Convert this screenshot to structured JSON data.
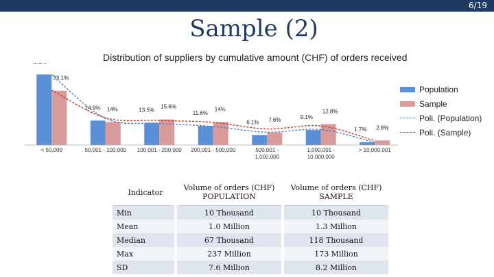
{
  "slide": {
    "title": "Sample (2)",
    "page": "6/19"
  },
  "chart_data": {
    "type": "bar",
    "title": "Distribution of suppliers by cumulative amount (CHF) of orders received",
    "categories": [
      "< 50,000",
      "50,001 - 100,000",
      "100,001 - 200,000",
      "200,001 - 500,000",
      "500,001 -|1,000,000",
      "1,000,001 -|10,000,000",
      "> 10,000,001"
    ],
    "series": [
      {
        "name": "Population",
        "values": [
          43.1,
          14.9,
          13.5,
          11.6,
          6.1,
          9.1,
          1.7
        ],
        "labels": [
          "43.1%",
          "14.9%",
          "13.5%",
          "11.6%",
          "6.1%",
          "9.1%",
          "1.7%"
        ],
        "color": "#5b8fd6"
      },
      {
        "name": "Sample",
        "values": [
          33.1,
          14,
          15.6,
          14,
          7.6,
          12.8,
          2.8
        ],
        "labels": [
          "33.1%",
          "14%",
          "15.6%",
          "14%",
          "7.6%",
          "12.8%",
          "2.8%"
        ],
        "color": "#d99a9a"
      }
    ],
    "trendlines": [
      {
        "name": "Poli. (Population)",
        "color": "#4f81bd",
        "values": [
          43.0,
          16.2,
          13.2,
          11.3,
          7.8,
          9.4,
          1.6
        ]
      },
      {
        "name": "Poli. (Sample)",
        "color": "#c0392b",
        "values": [
          33.5,
          16.6,
          15.0,
          13.8,
          9.8,
          11.6,
          2.6
        ]
      }
    ],
    "ylim": [
      0,
      48
    ],
    "legend": "right"
  },
  "table": {
    "headers": [
      "Indicator",
      "Volume of orders (CHF) POPULATION",
      "Volume of orders (CHF) SAMPLE"
    ],
    "rows": [
      [
        "Min",
        "10 Thousand",
        "10 Thousand"
      ],
      [
        "Mean",
        "1.0 Million",
        "1.3 Million"
      ],
      [
        "Median",
        "67 Thousand",
        "118 Thousand"
      ],
      [
        "Max",
        "237 Million",
        "173 Million"
      ],
      [
        "SD",
        "7.6 Million",
        "8.2 Million"
      ]
    ]
  }
}
